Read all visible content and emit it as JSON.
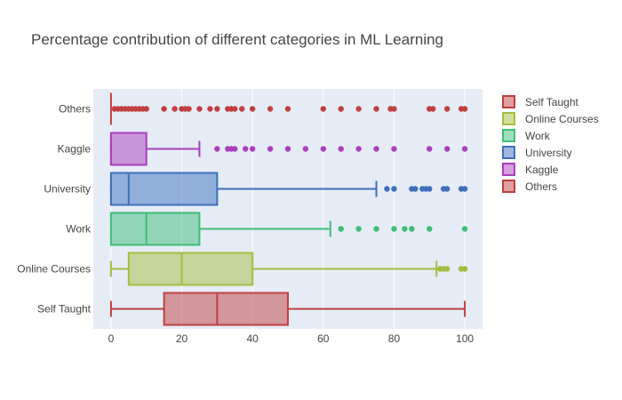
{
  "chart_data": {
    "type": "box",
    "orientation": "horizontal",
    "title": "Percentage contribution of different categories in ML Learning",
    "xlabel": "",
    "ylabel": "",
    "xlim": [
      -5,
      105
    ],
    "x_ticks": [
      0,
      20,
      40,
      60,
      80,
      100
    ],
    "grid": true,
    "legend_position": "right",
    "series": [
      {
        "name": "Self Taught",
        "color": "#c0403f",
        "min": 0,
        "q1": 15,
        "median": 30,
        "q3": 50,
        "max": 100,
        "outliers": []
      },
      {
        "name": "Online Courses",
        "color": "#a3be3f",
        "min": 0,
        "q1": 5,
        "median": 20,
        "q3": 40,
        "max": 92,
        "outliers": [
          93,
          94,
          95,
          99,
          100
        ]
      },
      {
        "name": "Work",
        "color": "#3fbd78",
        "min": 0,
        "q1": 0,
        "median": 10,
        "q3": 25,
        "max": 62,
        "outliers": [
          65,
          70,
          75,
          80,
          83,
          85,
          90,
          100
        ]
      },
      {
        "name": "University",
        "color": "#3f6fbd",
        "min": 0,
        "q1": 0,
        "median": 5,
        "q3": 30,
        "max": 75,
        "outliers": [
          78,
          80,
          85,
          86,
          88,
          89,
          90,
          94,
          95,
          99,
          100
        ]
      },
      {
        "name": "Kaggle",
        "color": "#aa3fbd",
        "min": 0,
        "q1": 0,
        "median": 0,
        "q3": 10,
        "max": 25,
        "outliers": [
          30,
          33,
          34,
          35,
          38,
          40,
          45,
          50,
          55,
          60,
          65,
          70,
          75,
          80,
          90,
          95,
          100
        ]
      },
      {
        "name": "Others",
        "color": "#c0403f",
        "min": 0,
        "q1": 0,
        "median": 0,
        "q3": 0,
        "max": 0,
        "outliers": [
          1,
          2,
          3,
          4,
          5,
          6,
          7,
          8,
          9,
          10,
          15,
          18,
          20,
          21,
          22,
          25,
          28,
          30,
          33,
          34,
          35,
          37,
          40,
          45,
          50,
          60,
          65,
          70,
          75,
          79,
          80,
          90,
          91,
          95,
          99,
          100
        ]
      }
    ]
  }
}
